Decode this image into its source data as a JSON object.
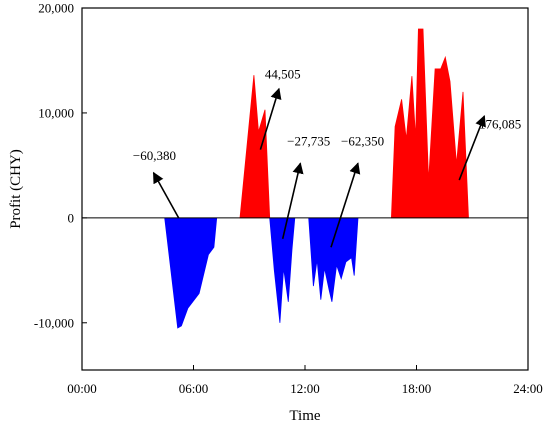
{
  "chart_data": {
    "type": "area",
    "xlabel": "Time",
    "ylabel": "Profit (CHY)",
    "xlim": [
      0,
      24
    ],
    "ylim": [
      -14500,
      20000
    ],
    "x_ticks": [
      {
        "value": 0,
        "label": "00:00"
      },
      {
        "value": 6,
        "label": "06:00"
      },
      {
        "value": 12,
        "label": "12:00"
      },
      {
        "value": 18,
        "label": "18:00"
      },
      {
        "value": 24,
        "label": "24:00"
      }
    ],
    "y_ticks": [
      {
        "value": -10000,
        "label": "-10,000"
      },
      {
        "value": 0,
        "label": "0"
      },
      {
        "value": 10000,
        "label": "10,000"
      },
      {
        "value": 20000,
        "label": "20,000"
      }
    ],
    "grid": false,
    "colors": {
      "positive": "#ff0000",
      "negative": "#0000ff",
      "baseline": "#000000"
    },
    "regions": [
      {
        "sign": "negative",
        "points": [
          [
            4.45,
            0
          ],
          [
            5.15,
            -10500
          ],
          [
            5.35,
            -10300
          ],
          [
            5.7,
            -8600
          ],
          [
            6.3,
            -7200
          ],
          [
            6.8,
            -3500
          ],
          [
            7.1,
            -2800
          ],
          [
            7.25,
            0
          ]
        ]
      },
      {
        "sign": "positive",
        "points": [
          [
            8.5,
            0
          ],
          [
            9.25,
            13600
          ],
          [
            9.5,
            8200
          ],
          [
            9.85,
            10300
          ],
          [
            10.1,
            0
          ]
        ]
      },
      {
        "sign": "negative",
        "points": [
          [
            10.1,
            0
          ],
          [
            10.35,
            -5000
          ],
          [
            10.65,
            -10000
          ],
          [
            10.85,
            -4800
          ],
          [
            11.1,
            -8000
          ],
          [
            11.3,
            -3000
          ],
          [
            11.45,
            0
          ]
        ]
      },
      {
        "sign": "negative",
        "points": [
          [
            12.2,
            0
          ],
          [
            12.45,
            -6500
          ],
          [
            12.65,
            -4000
          ],
          [
            12.85,
            -7800
          ],
          [
            13.05,
            -4800
          ],
          [
            13.3,
            -6900
          ],
          [
            13.45,
            -8000
          ],
          [
            13.7,
            -4500
          ],
          [
            13.95,
            -5800
          ],
          [
            14.2,
            -4200
          ],
          [
            14.5,
            -3800
          ],
          [
            14.65,
            -5500
          ],
          [
            14.85,
            0
          ]
        ]
      },
      {
        "sign": "positive",
        "points": [
          [
            16.65,
            0
          ],
          [
            16.85,
            8700
          ],
          [
            17.2,
            11300
          ],
          [
            17.45,
            7500
          ],
          [
            17.75,
            13500
          ],
          [
            17.95,
            7600
          ],
          [
            18.1,
            18000
          ],
          [
            18.35,
            18000
          ],
          [
            18.65,
            3500
          ],
          [
            19.0,
            14200
          ],
          [
            19.3,
            14200
          ],
          [
            19.55,
            15300
          ],
          [
            19.8,
            13000
          ],
          [
            20.15,
            5100
          ],
          [
            20.5,
            12000
          ],
          [
            20.8,
            0
          ]
        ]
      }
    ],
    "annotations": [
      {
        "label": "−60,380",
        "text_at": [
          3.9,
          5500
        ],
        "arrow_from": [
          5.2,
          0
        ],
        "arrow_to": [
          3.85,
          4300
        ]
      },
      {
        "label": "44,505",
        "text_at": [
          10.8,
          13300
        ],
        "arrow_from": [
          9.6,
          6500
        ],
        "arrow_to": [
          10.6,
          12300
        ]
      },
      {
        "label": "−27,735",
        "text_at": [
          12.2,
          6900
        ],
        "arrow_from": [
          10.8,
          -2000
        ],
        "arrow_to": [
          11.75,
          5200
        ]
      },
      {
        "label": "−62,350",
        "text_at": [
          15.1,
          6900
        ],
        "arrow_from": [
          13.4,
          -2800
        ],
        "arrow_to": [
          14.85,
          5200
        ]
      },
      {
        "label": "176,085",
        "text_at": [
          22.5,
          8500
        ],
        "arrow_from": [
          20.3,
          3600
        ],
        "arrow_to": [
          21.65,
          9700
        ]
      }
    ]
  }
}
